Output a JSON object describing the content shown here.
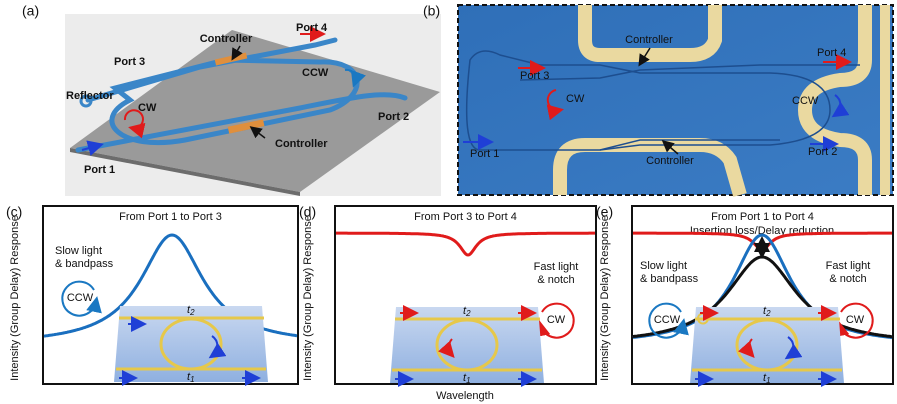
{
  "panel_a": {
    "label": "(a)",
    "controller_top": "Controller",
    "controller_bottom": "Controller",
    "port1": "Port 1",
    "port2": "Port 2",
    "port3": "Port 3",
    "port4": "Port 4",
    "reflector": "Reflector",
    "cw": "CW",
    "ccw": "CCW"
  },
  "panel_b": {
    "label": "(b)",
    "controller_top": "Controller",
    "controller_bottom": "Controller",
    "port1": "Port 1",
    "port2": "Port 2",
    "port3": "Port 3",
    "port4": "Port 4",
    "cw": "CW",
    "ccw": "CCW"
  },
  "panel_c": {
    "label": "(c)",
    "title": "From Port 1 to Port 3",
    "y_label": "Intensity (Group Delay) Response",
    "note": [
      "Slow light",
      "& bandpass"
    ],
    "direction": "CCW",
    "t_top": [
      "t",
      "2"
    ],
    "t_bottom": [
      "t",
      "1"
    ]
  },
  "panel_d": {
    "label": "(d)",
    "title": "From Port 3 to Port 4",
    "y_label": "Intensity (Group Delay) Response",
    "x_label": "Wavelength",
    "note": [
      "Fast light",
      "& notch"
    ],
    "direction": "CW",
    "t_top": [
      "t",
      "2"
    ],
    "t_bottom": [
      "t",
      "1"
    ]
  },
  "panel_e": {
    "label": "(e)",
    "title": "From Port 1 to Port 4",
    "subtitle": "Insertion loss/Delay reduction",
    "y_label": "Intensity (Group Delay) Response",
    "note_left": [
      "Slow light",
      "& bandpass"
    ],
    "direction_left": "CCW",
    "note_right": [
      "Fast light",
      "& notch"
    ],
    "direction_right": "CW",
    "t_top": [
      "t",
      "2"
    ],
    "t_bottom": [
      "t",
      "1"
    ]
  }
}
